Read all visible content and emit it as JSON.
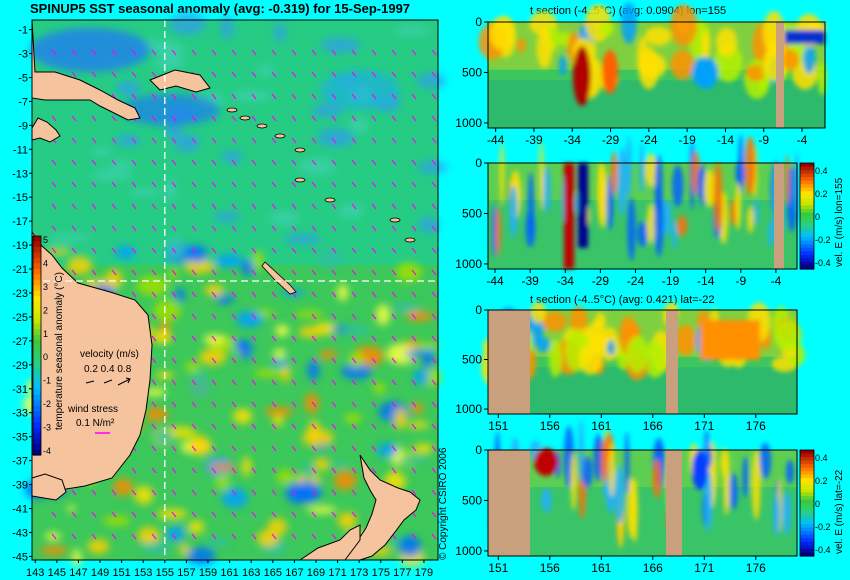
{
  "page": {
    "background": "#00ffff",
    "land_color": "#f5c39e",
    "vector_color": "#ff00ff"
  },
  "map": {
    "title": "SPINUP5 SST seasonal anomaly (avg: -0.319) for 15-Sep-1997",
    "y_ticks": [
      "-1",
      "-3",
      "-5",
      "-7",
      "-9",
      "-11",
      "-13",
      "-15",
      "-17",
      "-19",
      "-21",
      "-23",
      "-25",
      "-27",
      "-29",
      "-31",
      "-33",
      "-35",
      "-37",
      "-39",
      "-41",
      "-43",
      "-45"
    ],
    "x_ticks": [
      "143",
      "145",
      "147",
      "149",
      "151",
      "153",
      "155",
      "157",
      "159",
      "161",
      "163",
      "165",
      "167",
      "169",
      "171",
      "173",
      "175",
      "177",
      "179"
    ],
    "colorbar_label": "temperature seasonal anomaly (°C)",
    "colorbar_ticks": [
      "5",
      "4",
      "3",
      "2",
      "1",
      "0",
      "-1",
      "-2",
      "-3",
      "-4"
    ],
    "velocity_label": "velocity (m/s)",
    "velocity_scale": "0.2 0.4 0.8",
    "wind_label": "wind stress",
    "wind_scale": "0.1 N/m²",
    "copyright": "© Copyright CSIRO 2006"
  },
  "chart_data": [
    {
      "type": "heatmap",
      "title": "t section (-4..5°C) (avg: 0.0904) lon=155",
      "x_ticks": [
        "-44",
        "-39",
        "-34",
        "-29",
        "-24",
        "-19",
        "-14",
        "-9",
        "-4"
      ],
      "y_ticks": [
        "0",
        "500",
        "1000"
      ],
      "xlim": [
        -45,
        -1
      ],
      "ylim": [
        0,
        1050
      ],
      "color_range": [
        -4,
        5
      ]
    },
    {
      "type": "heatmap",
      "title": "",
      "x_ticks": [
        "-44",
        "-39",
        "-34",
        "-29",
        "-24",
        "-19",
        "-14",
        "-9",
        "-4"
      ],
      "y_ticks": [
        "0",
        "500",
        "1000"
      ],
      "xlim": [
        -45,
        -1
      ],
      "ylim": [
        0,
        1050
      ],
      "colorbar_label": "vel. E (m/s) lon=155",
      "colorbar_ticks": [
        "0.4",
        "0.2",
        "0",
        "-0.2",
        "-0.4"
      ],
      "color_range": [
        -0.4,
        0.4
      ]
    },
    {
      "type": "heatmap",
      "title": "t section (-4..5°C) (avg: 0.421) lat=-22",
      "x_ticks": [
        "151",
        "156",
        "161",
        "166",
        "171",
        "176"
      ],
      "y_ticks": [
        "0",
        "500",
        "1000"
      ],
      "xlim": [
        150,
        180
      ],
      "ylim": [
        0,
        1050
      ],
      "color_range": [
        -4,
        5
      ]
    },
    {
      "type": "heatmap",
      "title": "",
      "x_ticks": [
        "151",
        "156",
        "161",
        "166",
        "171",
        "176"
      ],
      "y_ticks": [
        "0",
        "500",
        "1000"
      ],
      "xlim": [
        150,
        180
      ],
      "ylim": [
        0,
        1050
      ],
      "colorbar_label": "vel. E (m/s) lat=-22",
      "colorbar_ticks": [
        "0.4",
        "0.2",
        "0",
        "-0.2",
        "-0.4"
      ],
      "color_range": [
        -0.4,
        0.4
      ]
    }
  ]
}
